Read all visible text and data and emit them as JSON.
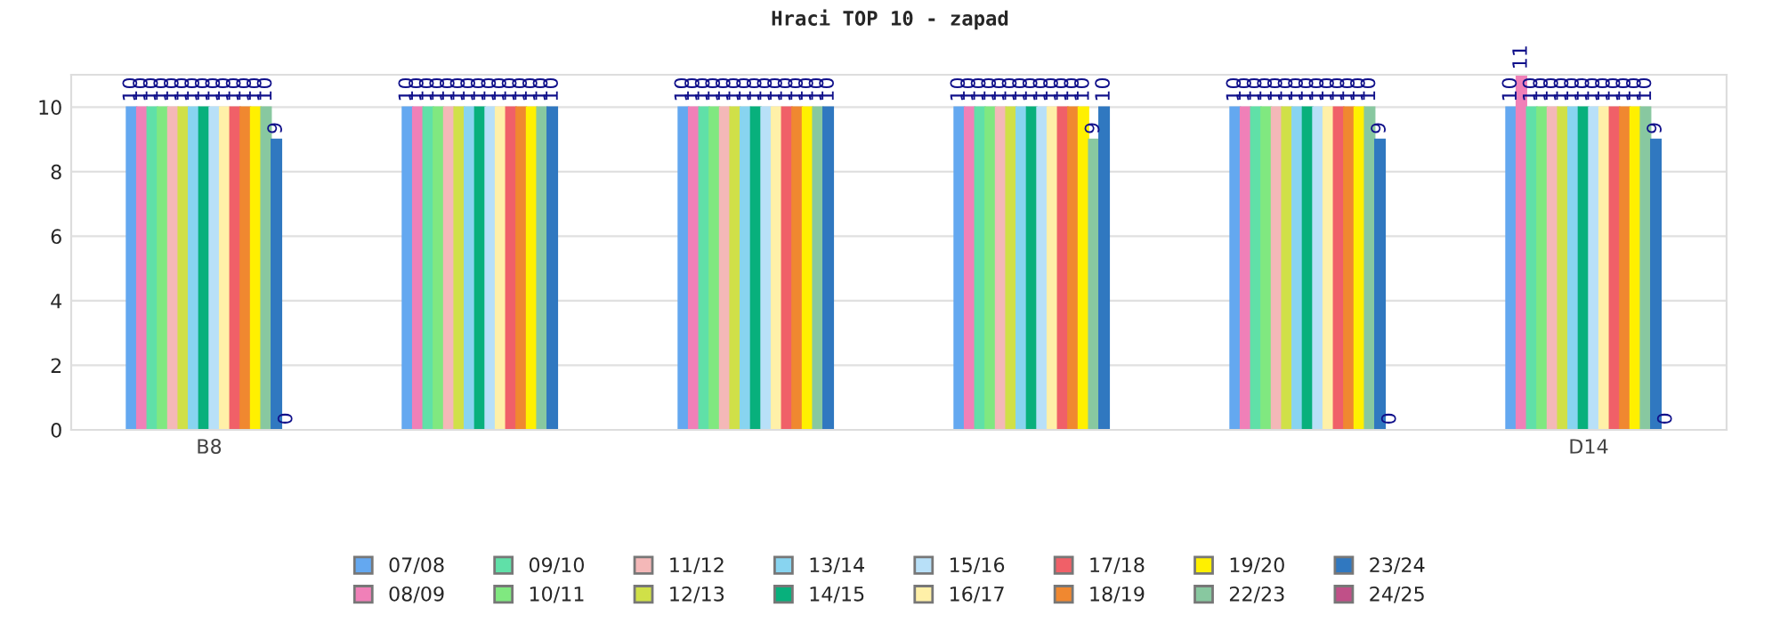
{
  "chart_data": {
    "type": "bar",
    "title": "Hraci TOP 10 - zapad",
    "categories": [
      "B8",
      null,
      null,
      null,
      null,
      "D14"
    ],
    "series": [
      {
        "name": "07/08",
        "color": "#64a8f0",
        "values": [
          10,
          10,
          10,
          10,
          10,
          10
        ]
      },
      {
        "name": "08/09",
        "color": "#f080b8",
        "values": [
          10,
          10,
          10,
          10,
          10,
          11
        ]
      },
      {
        "name": "09/10",
        "color": "#60e0a8",
        "values": [
          10,
          10,
          10,
          10,
          10,
          10
        ]
      },
      {
        "name": "10/11",
        "color": "#80e880",
        "values": [
          10,
          10,
          10,
          10,
          10,
          10
        ]
      },
      {
        "name": "11/12",
        "color": "#f4b8b8",
        "values": [
          10,
          10,
          10,
          10,
          10,
          10
        ]
      },
      {
        "name": "12/13",
        "color": "#d0e048",
        "values": [
          10,
          10,
          10,
          10,
          10,
          10
        ]
      },
      {
        "name": "13/14",
        "color": "#88d4f0",
        "values": [
          10,
          10,
          10,
          10,
          10,
          10
        ]
      },
      {
        "name": "14/15",
        "color": "#08b07c",
        "values": [
          10,
          10,
          10,
          10,
          10,
          10
        ]
      },
      {
        "name": "15/16",
        "color": "#b8e0f8",
        "values": [
          10,
          10,
          10,
          10,
          10,
          10
        ]
      },
      {
        "name": "16/17",
        "color": "#fff0a8",
        "values": [
          10,
          10,
          10,
          10,
          10,
          10
        ]
      },
      {
        "name": "17/18",
        "color": "#f06068",
        "values": [
          10,
          10,
          10,
          10,
          10,
          10
        ]
      },
      {
        "name": "18/19",
        "color": "#f08830",
        "values": [
          10,
          10,
          10,
          10,
          10,
          10
        ]
      },
      {
        "name": "19/20",
        "color": "#fff000",
        "values": [
          10,
          10,
          10,
          10,
          10,
          10
        ]
      },
      {
        "name": "22/23",
        "color": "#88c8a0",
        "values": [
          10,
          10,
          10,
          9,
          10,
          10
        ]
      },
      {
        "name": "23/24",
        "color": "#3078c0",
        "values": [
          9,
          10,
          10,
          10,
          9,
          9
        ]
      },
      {
        "name": "24/25",
        "color": "#c05088",
        "values": [
          0,
          null,
          null,
          null,
          0,
          0
        ]
      }
    ],
    "ylim": [
      0,
      11
    ],
    "yticks": [
      0,
      2,
      4,
      6,
      8,
      10
    ],
    "grid": "y",
    "legend": "bottom",
    "data_labels": true
  }
}
